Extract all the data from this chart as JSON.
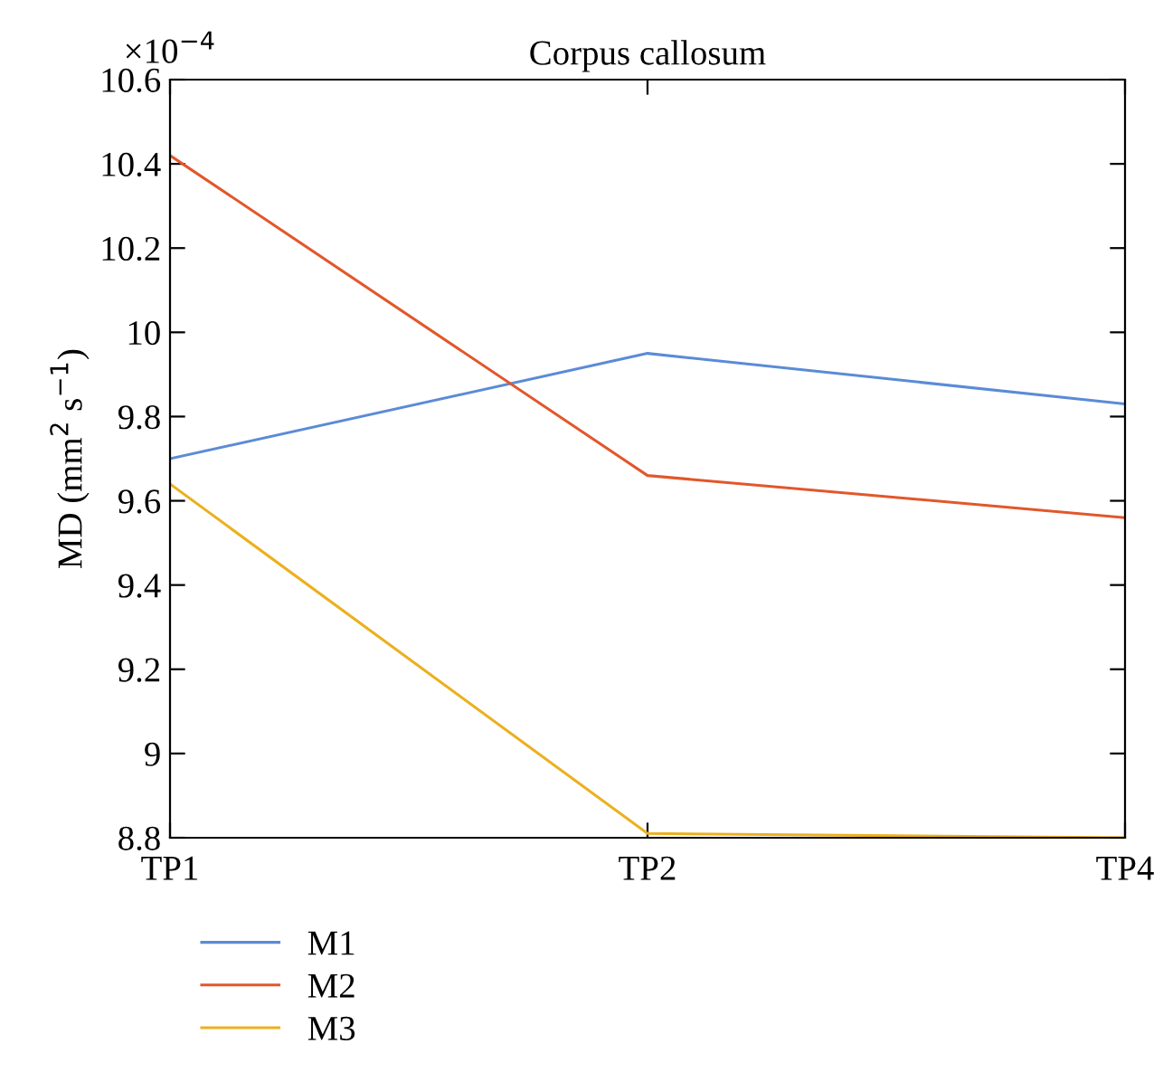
{
  "chart_data": {
    "type": "line",
    "title": "Corpus callosum",
    "ylabel": "MD (mm$^{2}$ s$^{−1}$)",
    "annotations": [
      "×10$^{−4}$"
    ],
    "categories": [
      "TP1",
      "TP2",
      "TP4"
    ],
    "series": [
      {
        "name": "M1",
        "color": "#5b8bd6",
        "values": [
          9.7,
          9.95,
          9.83
        ]
      },
      {
        "name": "M2",
        "color": "#e2572b",
        "values": [
          10.42,
          9.66,
          9.56
        ]
      },
      {
        "name": "M3",
        "color": "#ecb01f",
        "values": [
          9.64,
          8.81,
          8.8
        ]
      }
    ],
    "ylim": [
      8.8,
      10.6
    ],
    "yticks": [
      {
        "value": 8.8,
        "label": "8.8"
      },
      9,
      {
        "value": 9.2,
        "label": "9.2"
      },
      {
        "value": 9.4,
        "label": "9.4"
      },
      {
        "value": 9.6,
        "label": "9.6"
      },
      {
        "value": 9.8,
        "label": "9.8"
      },
      10,
      {
        "value": 10.2,
        "label": "10.2"
      },
      {
        "value": 10.4,
        "label": "10.4"
      },
      {
        "value": 10.6,
        "label": "10.6"
      }
    ],
    "grid": false,
    "legend": "bottom left",
    "marker": "none",
    "line_style": "solid"
  }
}
